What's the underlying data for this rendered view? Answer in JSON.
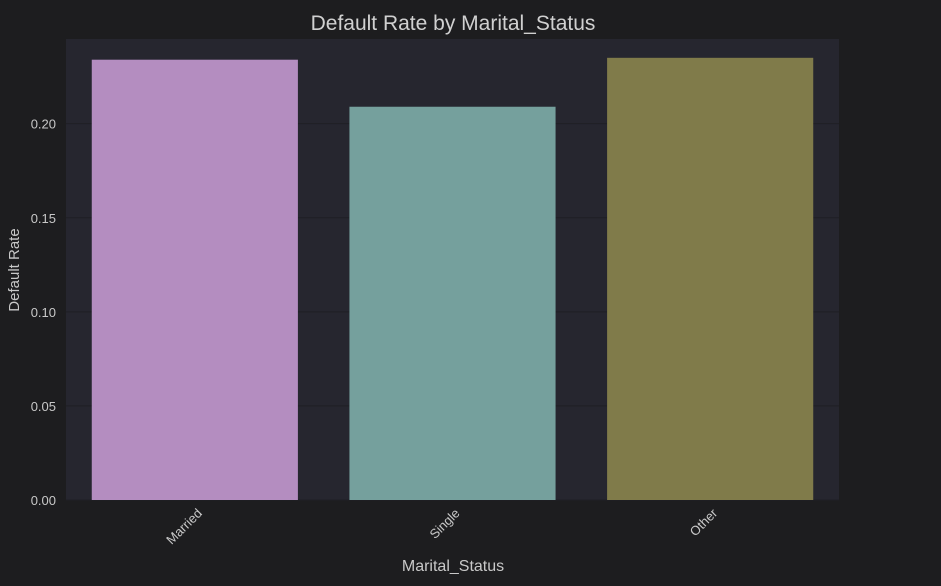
{
  "chart_data": {
    "type": "bar",
    "title": "Default Rate by Marital_Status",
    "xlabel": "Marital_Status",
    "ylabel": "Default Rate",
    "categories": [
      "Married",
      "Single",
      "Other"
    ],
    "values": [
      0.234,
      0.209,
      0.235
    ],
    "ylim": [
      0,
      0.245
    ],
    "yticks": [
      0.0,
      0.05,
      0.1,
      0.15,
      0.2
    ],
    "ytick_labels": [
      "0.00",
      "0.05",
      "0.10",
      "0.15",
      "0.20"
    ],
    "colors": [
      "#b48dc0",
      "#75a09d",
      "#807b4a"
    ],
    "grid": true,
    "legend": "none",
    "theme": {
      "page_background": "#1d1d1f",
      "plot_background": "#26262f",
      "grid_color": "#1f1f25",
      "text_color": "#c8c8c8",
      "title_color": "#d0d0d0"
    }
  }
}
